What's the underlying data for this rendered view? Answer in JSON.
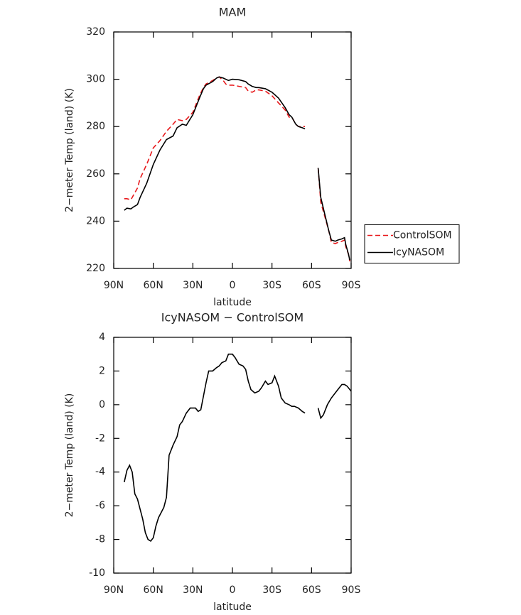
{
  "chart_data": [
    {
      "type": "line",
      "title": "MAM",
      "x_label": "latitude",
      "y_label": "2−meter Temp (land) (K)",
      "x": [
        82,
        80,
        77,
        75,
        72,
        70,
        65,
        60,
        55,
        50,
        45,
        42,
        38,
        35,
        30,
        25,
        22,
        20,
        15,
        12,
        10,
        7,
        5,
        3,
        0,
        -5,
        -10,
        -12,
        -15,
        -18,
        -20,
        -25,
        -30,
        -35,
        -40,
        -43,
        -45,
        -48,
        -50,
        -53,
        -55,
        -60,
        -65,
        -67,
        -70,
        -73,
        -75,
        -78,
        -80,
        -83,
        -85,
        -86,
        -88,
        -89
      ],
      "series": [
        {
          "name": "ControlSOM",
          "color": "#e8191c",
          "dash": "dashed",
          "values": [
            249.5,
            249.5,
            249,
            251,
            254,
            258,
            264,
            271,
            274,
            278,
            281,
            283,
            282.5,
            283,
            286,
            293,
            296.5,
            298,
            299.5,
            300.5,
            301,
            299.5,
            298,
            297.5,
            297.5,
            297,
            296.5,
            295,
            294.5,
            295.5,
            295.5,
            295,
            293,
            290,
            287,
            284,
            284,
            281,
            280,
            280,
            280,
            null,
            262.5,
            248,
            242,
            236,
            231,
            230.5,
            231,
            231.5,
            232,
            229,
            226,
            223
          ]
        },
        {
          "name": "IcyNASOM",
          "color": "#000000",
          "dash": "solid",
          "values": [
            244.6,
            245.5,
            245.2,
            246,
            247,
            250,
            256,
            264,
            270,
            274.5,
            276,
            279.5,
            281,
            280.5,
            285,
            292,
            296,
            297.5,
            299,
            300.5,
            301,
            300.5,
            300,
            299.5,
            300,
            299.8,
            299,
            298,
            297,
            296.5,
            296.5,
            296,
            294.5,
            292,
            288,
            285,
            284,
            281,
            280,
            279.5,
            279,
            null,
            262.5,
            250,
            243,
            236,
            232,
            231.5,
            232,
            232.5,
            233,
            230,
            226,
            223.5
          ]
        }
      ],
      "xlim": [
        90,
        -90
      ],
      "xticks": [
        {
          "value": 90,
          "label": "90N"
        },
        {
          "value": 60,
          "label": "60N"
        },
        {
          "value": 30,
          "label": "30N"
        },
        0,
        {
          "value": -30,
          "label": "30S"
        },
        {
          "value": -60,
          "label": "60S"
        },
        {
          "value": -90,
          "label": "90S"
        }
      ],
      "ylim": [
        220,
        320
      ],
      "yticks": [
        220,
        240,
        260,
        280,
        300,
        320
      ],
      "legend": "right"
    },
    {
      "type": "line",
      "title": "IcyNASOM − ControlSOM",
      "x_label": "latitude",
      "y_label": "2−meter Temp (land) (K)",
      "x": [
        82,
        80,
        78,
        76,
        74,
        72,
        70,
        68,
        66,
        64,
        62,
        60,
        58,
        56,
        54,
        52,
        50,
        48,
        45,
        42,
        40,
        38,
        35,
        32,
        30,
        28,
        26,
        24,
        22,
        20,
        18,
        15,
        12,
        10,
        8,
        5,
        3,
        0,
        -2,
        -5,
        -8,
        -10,
        -12,
        -14,
        -17,
        -20,
        -22,
        -25,
        -27,
        -30,
        -32,
        -35,
        -37,
        -40,
        -43,
        -45,
        -47,
        -50,
        -53,
        -55,
        -60,
        -65,
        -67,
        -69,
        -72,
        -75,
        -78,
        -80,
        -83,
        -85,
        -87,
        -90
      ],
      "series": [
        {
          "color": "#000000",
          "dash": "solid",
          "values": [
            -4.6,
            -3.9,
            -3.6,
            -4.0,
            -5.3,
            -5.6,
            -6.2,
            -6.8,
            -7.6,
            -8.0,
            -8.1,
            -7.9,
            -7.2,
            -6.7,
            -6.4,
            -6.1,
            -5.5,
            -3.0,
            -2.4,
            -1.9,
            -1.2,
            -1.0,
            -0.5,
            -0.2,
            -0.2,
            -0.2,
            -0.4,
            -0.3,
            0.5,
            1.3,
            2.0,
            2.0,
            2.2,
            2.3,
            2.5,
            2.6,
            3.0,
            3.0,
            2.8,
            2.4,
            2.3,
            2.1,
            1.4,
            0.9,
            0.7,
            0.8,
            1.0,
            1.4,
            1.2,
            1.3,
            1.7,
            1.1,
            0.4,
            0.1,
            0.0,
            -0.1,
            -0.1,
            -0.2,
            -0.4,
            -0.5,
            null,
            -0.2,
            -0.8,
            -0.6,
            0.0,
            0.4,
            0.7,
            0.9,
            1.2,
            1.2,
            1.1,
            0.8
          ]
        }
      ],
      "xlim": [
        90,
        -90
      ],
      "xticks": [
        {
          "value": 90,
          "label": "90N"
        },
        {
          "value": 60,
          "label": "60N"
        },
        {
          "value": 30,
          "label": "30N"
        },
        0,
        {
          "value": -30,
          "label": "30S"
        },
        {
          "value": -60,
          "label": "60S"
        },
        {
          "value": -90,
          "label": "90S"
        }
      ],
      "ylim": [
        -10,
        4
      ],
      "yticks": [
        -10,
        -8,
        -6,
        -4,
        -2,
        0,
        2,
        4
      ]
    }
  ]
}
